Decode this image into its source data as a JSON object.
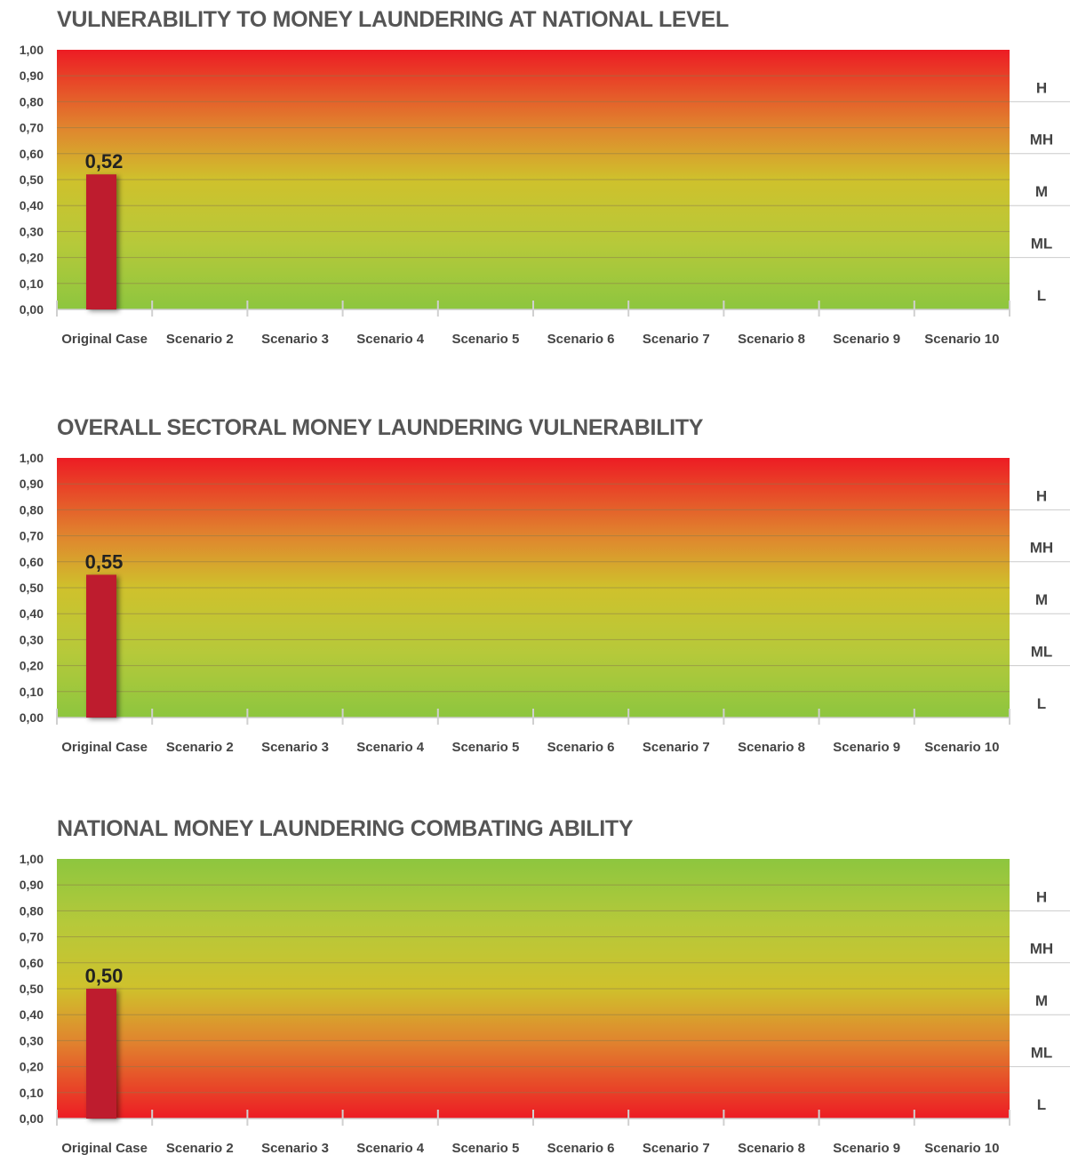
{
  "chart_data": [
    {
      "type": "bar",
      "title": "VULNERABILITY TO MONEY LAUNDERING AT NATIONAL LEVEL",
      "categories": [
        "Original Case",
        "Scenario 2",
        "Scenario 3",
        "Scenario 4",
        "Scenario 5",
        "Scenario 6",
        "Scenario 7",
        "Scenario 8",
        "Scenario 9",
        "Scenario 10"
      ],
      "values": [
        0.52,
        null,
        null,
        null,
        null,
        null,
        null,
        null,
        null,
        null
      ],
      "data_labels": [
        "0,52",
        "",
        "",
        "",
        "",
        "",
        "",
        "",
        "",
        ""
      ],
      "yticks": [
        "0,00",
        "0,10",
        "0,20",
        "0,30",
        "0,40",
        "0,50",
        "0,60",
        "0,70",
        "0,80",
        "0,90",
        "1,00"
      ],
      "ylim": [
        0,
        1
      ],
      "bands": [
        "L",
        "ML",
        "M",
        "MH",
        "H"
      ],
      "gradient": "green-bottom-red-top",
      "bar_color": "#be1e2d",
      "grid": true
    },
    {
      "type": "bar",
      "title": "OVERALL SECTORAL MONEY LAUNDERING VULNERABILITY",
      "categories": [
        "Original Case",
        "Scenario 2",
        "Scenario 3",
        "Scenario 4",
        "Scenario 5",
        "Scenario 6",
        "Scenario 7",
        "Scenario 8",
        "Scenario 9",
        "Scenario 10"
      ],
      "values": [
        0.55,
        null,
        null,
        null,
        null,
        null,
        null,
        null,
        null,
        null
      ],
      "data_labels": [
        "0,55",
        "",
        "",
        "",
        "",
        "",
        "",
        "",
        "",
        ""
      ],
      "yticks": [
        "0,00",
        "0,10",
        "0,20",
        "0,30",
        "0,40",
        "0,50",
        "0,60",
        "0,70",
        "0,80",
        "0,90",
        "1,00"
      ],
      "ylim": [
        0,
        1
      ],
      "bands": [
        "L",
        "ML",
        "M",
        "MH",
        "H"
      ],
      "gradient": "green-bottom-red-top",
      "bar_color": "#be1e2d",
      "grid": true
    },
    {
      "type": "bar",
      "title": "NATIONAL MONEY LAUNDERING COMBATING ABILITY",
      "categories": [
        "Original Case",
        "Scenario 2",
        "Scenario 3",
        "Scenario 4",
        "Scenario 5",
        "Scenario 6",
        "Scenario 7",
        "Scenario 8",
        "Scenario 9",
        "Scenario 10"
      ],
      "values": [
        0.5,
        null,
        null,
        null,
        null,
        null,
        null,
        null,
        null,
        null
      ],
      "data_labels": [
        "0,50",
        "",
        "",
        "",
        "",
        "",
        "",
        "",
        "",
        ""
      ],
      "yticks": [
        "0,00",
        "0,10",
        "0,20",
        "0,30",
        "0,40",
        "0,50",
        "0,60",
        "0,70",
        "0,80",
        "0,90",
        "1,00"
      ],
      "ylim": [
        0,
        1
      ],
      "bands": [
        "L",
        "ML",
        "M",
        "MH",
        "H"
      ],
      "gradient": "red-bottom-green-top",
      "bar_color": "#be1e2d",
      "grid": true
    }
  ]
}
